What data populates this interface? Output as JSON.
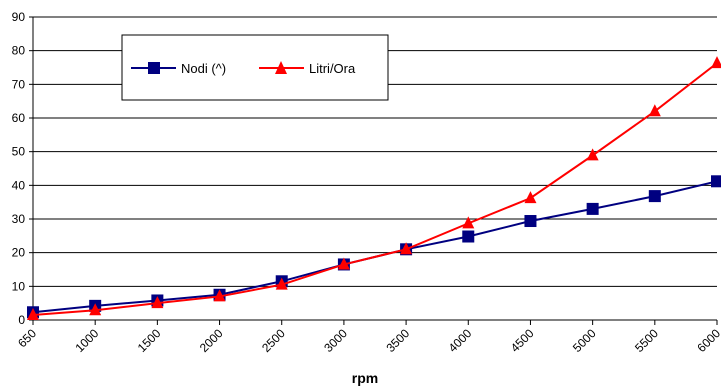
{
  "chart_data": {
    "type": "line",
    "title": "",
    "xlabel": "rpm",
    "ylabel": "",
    "categories": [
      "650",
      "1000",
      "1500",
      "2000",
      "2500",
      "3000",
      "3500",
      "4000",
      "4500",
      "5000",
      "5500",
      "6000"
    ],
    "ylim": [
      0,
      90
    ],
    "yticks": [
      0,
      10,
      20,
      30,
      40,
      50,
      60,
      70,
      80,
      90
    ],
    "grid": true,
    "legend_position": "top-left",
    "series": [
      {
        "name": "Nodi (^)",
        "color": "#000080",
        "marker": "square",
        "values": [
          2.3,
          4.2,
          5.8,
          7.5,
          11.5,
          16.5,
          21.0,
          24.8,
          29.4,
          33.0,
          36.8,
          41.2
        ]
      },
      {
        "name": "Litri/Ora",
        "color": "#ff0000",
        "marker": "triangle",
        "values": [
          1.5,
          2.9,
          5.0,
          7.0,
          10.5,
          16.5,
          21.0,
          28.7,
          36.2,
          48.9,
          62.0,
          76.3
        ]
      }
    ]
  }
}
